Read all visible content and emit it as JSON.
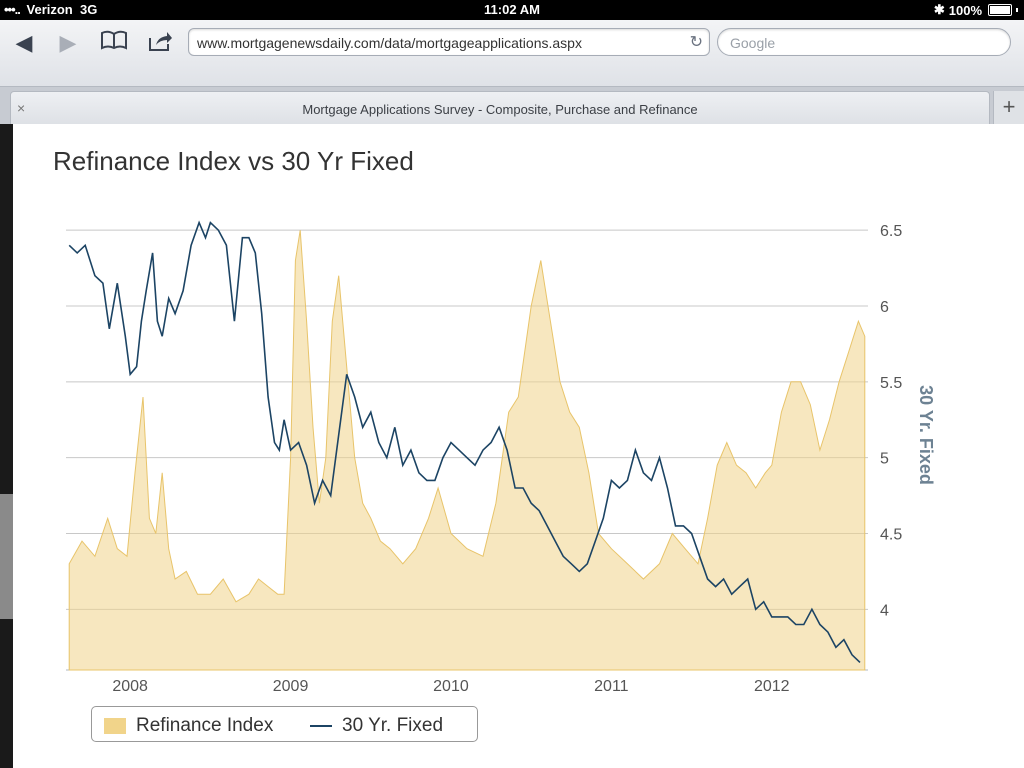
{
  "status": {
    "carrier": "Verizon",
    "network": "3G",
    "time": "11:02 AM",
    "battery": "100%"
  },
  "browser": {
    "url": "www.mortgagenewsdaily.com/data/mortgageapplications.aspx",
    "search_placeholder": "Google",
    "tab_title": "Mortgage Applications Survey - Composite, Purchase and Refinance",
    "buttons": {
      "back": "back-icon",
      "forward": "forward-icon",
      "bookmarks": "book-icon",
      "share": "share-icon",
      "reload": "reload-icon",
      "close_tab": "×",
      "new_tab": "+"
    }
  },
  "chart_data": {
    "type": "area",
    "title": "Refinance Index vs 30 Yr Fixed",
    "ylabel": "30 Yr. Fixed",
    "ylim": [
      3.6,
      6.6
    ],
    "xlim": [
      2007.6,
      2012.6
    ],
    "yticks": [
      6.5,
      6,
      5.5,
      5,
      4.5,
      4
    ],
    "xticks": [
      2008,
      2009,
      2010,
      2011,
      2012
    ],
    "legend": [
      "Refinance Index",
      "30 Yr. Fixed"
    ],
    "colors": {
      "refinance": "#f1d48a",
      "fixed": "#1c4464"
    },
    "series": [
      {
        "name": "30 Yr. Fixed",
        "x": [
          2007.62,
          2007.67,
          2007.72,
          2007.78,
          2007.83,
          2007.87,
          2007.92,
          2007.97,
          2008.0,
          2008.04,
          2008.07,
          2008.1,
          2008.14,
          2008.17,
          2008.2,
          2008.24,
          2008.28,
          2008.33,
          2008.38,
          2008.43,
          2008.47,
          2008.5,
          2008.55,
          2008.6,
          2008.65,
          2008.7,
          2008.74,
          2008.78,
          2008.82,
          2008.86,
          2008.9,
          2008.93,
          2008.96,
          2009.0,
          2009.05,
          2009.1,
          2009.15,
          2009.2,
          2009.25,
          2009.3,
          2009.35,
          2009.4,
          2009.45,
          2009.5,
          2009.55,
          2009.6,
          2009.65,
          2009.7,
          2009.75,
          2009.8,
          2009.85,
          2009.9,
          2009.95,
          2010.0,
          2010.05,
          2010.1,
          2010.15,
          2010.2,
          2010.25,
          2010.3,
          2010.35,
          2010.4,
          2010.45,
          2010.5,
          2010.55,
          2010.6,
          2010.65,
          2010.7,
          2010.75,
          2010.8,
          2010.85,
          2010.9,
          2010.95,
          2011.0,
          2011.05,
          2011.1,
          2011.15,
          2011.2,
          2011.25,
          2011.3,
          2011.35,
          2011.4,
          2011.45,
          2011.5,
          2011.55,
          2011.6,
          2011.65,
          2011.7,
          2011.75,
          2011.8,
          2011.85,
          2011.9,
          2011.95,
          2012.0,
          2012.05,
          2012.1,
          2012.15,
          2012.2,
          2012.25,
          2012.3,
          2012.35,
          2012.4,
          2012.45,
          2012.5,
          2012.55
        ],
        "values": [
          6.4,
          6.35,
          6.4,
          6.2,
          6.15,
          5.85,
          6.15,
          5.8,
          5.55,
          5.6,
          5.9,
          6.1,
          6.35,
          5.9,
          5.8,
          6.05,
          5.95,
          6.1,
          6.4,
          6.55,
          6.45,
          6.55,
          6.5,
          6.4,
          5.9,
          6.45,
          6.45,
          6.35,
          5.95,
          5.4,
          5.1,
          5.05,
          5.25,
          5.05,
          5.1,
          4.95,
          4.7,
          4.85,
          4.75,
          5.15,
          5.55,
          5.4,
          5.2,
          5.3,
          5.1,
          5.0,
          5.2,
          4.95,
          5.05,
          4.9,
          4.85,
          4.85,
          5.0,
          5.1,
          5.05,
          5.0,
          4.95,
          5.05,
          5.1,
          5.2,
          5.05,
          4.8,
          4.8,
          4.7,
          4.65,
          4.55,
          4.45,
          4.35,
          4.3,
          4.25,
          4.3,
          4.45,
          4.6,
          4.85,
          4.8,
          4.85,
          5.05,
          4.9,
          4.85,
          5.0,
          4.8,
          4.55,
          4.55,
          4.5,
          4.35,
          4.2,
          4.15,
          4.2,
          4.1,
          4.15,
          4.2,
          4.0,
          4.05,
          3.95,
          3.95,
          3.95,
          3.9,
          3.9,
          4.0,
          3.9,
          3.85,
          3.75,
          3.8,
          3.7,
          3.65
        ]
      },
      {
        "name": "Refinance Index",
        "x": [
          2007.62,
          2007.7,
          2007.78,
          2007.86,
          2007.92,
          2007.98,
          2008.03,
          2008.08,
          2008.12,
          2008.16,
          2008.2,
          2008.24,
          2008.28,
          2008.35,
          2008.42,
          2008.5,
          2008.58,
          2008.66,
          2008.74,
          2008.8,
          2008.86,
          2008.92,
          2008.96,
          2009.0,
          2009.03,
          2009.06,
          2009.1,
          2009.14,
          2009.18,
          2009.22,
          2009.26,
          2009.3,
          2009.35,
          2009.4,
          2009.45,
          2009.5,
          2009.56,
          2009.62,
          2009.7,
          2009.78,
          2009.86,
          2009.92,
          2010.0,
          2010.1,
          2010.2,
          2010.28,
          2010.36,
          2010.42,
          2010.5,
          2010.56,
          2010.62,
          2010.68,
          2010.74,
          2010.8,
          2010.86,
          2010.92,
          2011.0,
          2011.1,
          2011.2,
          2011.3,
          2011.38,
          2011.46,
          2011.54,
          2011.6,
          2011.66,
          2011.72,
          2011.78,
          2011.84,
          2011.9,
          2011.96,
          2012.0,
          2012.06,
          2012.12,
          2012.18,
          2012.24,
          2012.3,
          2012.36,
          2012.42,
          2012.48,
          2012.54,
          2012.58
        ],
        "values": [
          4.3,
          4.45,
          4.35,
          4.6,
          4.4,
          4.35,
          4.9,
          5.4,
          4.6,
          4.5,
          4.9,
          4.4,
          4.2,
          4.25,
          4.1,
          4.1,
          4.2,
          4.05,
          4.1,
          4.2,
          4.15,
          4.1,
          4.1,
          5.0,
          6.3,
          6.5,
          5.9,
          5.2,
          4.7,
          5.0,
          5.9,
          6.2,
          5.6,
          5.0,
          4.7,
          4.6,
          4.45,
          4.4,
          4.3,
          4.4,
          4.6,
          4.8,
          4.5,
          4.4,
          4.35,
          4.7,
          5.3,
          5.4,
          6.0,
          6.3,
          5.9,
          5.5,
          5.3,
          5.2,
          4.9,
          4.5,
          4.4,
          4.3,
          4.2,
          4.3,
          4.5,
          4.4,
          4.3,
          4.6,
          4.95,
          5.1,
          4.95,
          4.9,
          4.8,
          4.9,
          4.95,
          5.3,
          5.5,
          5.5,
          5.35,
          5.05,
          5.25,
          5.5,
          5.7,
          5.9,
          5.8
        ]
      }
    ]
  }
}
